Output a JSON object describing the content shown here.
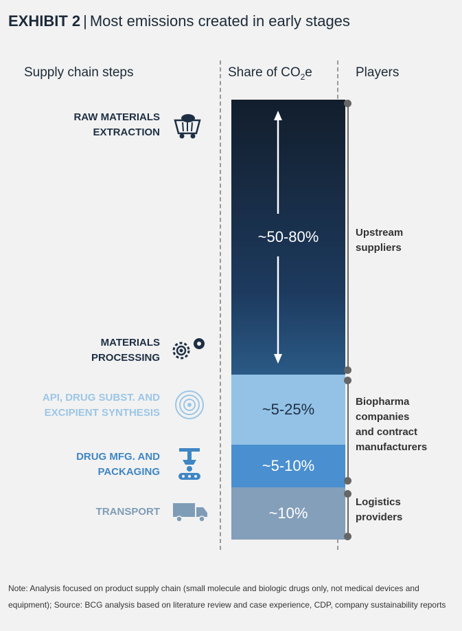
{
  "title": {
    "exhibit": "EXHIBIT 2",
    "separator": "|",
    "text": "Most emissions created in early stages"
  },
  "headers": {
    "steps": "Supply chain steps",
    "share_prefix": "Share of CO",
    "share_sub": "2",
    "share_suffix": "e",
    "players": "Players"
  },
  "steps": [
    {
      "label": "RAW MATERIALS\nEXTRACTION",
      "color": "#1e2f44",
      "icon": "mine-cart-icon"
    },
    {
      "label": "MATERIALS\nPROCESSING",
      "color": "#1e2f44",
      "icon": "gears-icon"
    },
    {
      "label": "API, DRUG SUBST. AND\nEXCIPIENT SYNTHESIS",
      "color": "#9cc6e6",
      "icon": "concentric-circles-icon"
    },
    {
      "label": "DRUG MFG. AND\nPACKAGING",
      "color": "#3f86c4",
      "icon": "robotic-conveyor-icon"
    },
    {
      "label": "TRANSPORT",
      "color": "#7f9cb6",
      "icon": "truck-icon"
    }
  ],
  "shares": [
    {
      "label": "~50-80%",
      "color": "#1b3350"
    },
    {
      "label": "~5-25%",
      "color": "#93c2e6"
    },
    {
      "label": "~5-10%",
      "color": "#4a8fcf"
    },
    {
      "label": "~10%",
      "color": "#849fba"
    }
  ],
  "players": [
    {
      "label": "Upstream\nsuppliers"
    },
    {
      "label": "Biopharma\ncompanies\nand contract\nmanufacturers"
    },
    {
      "label": "Logistics\nproviders"
    }
  ],
  "note": "Note: Analysis focused on product supply chain (small molecule and biologic drugs only, not medical devices and equipment); Source: BCG analysis based on literature review and case experience, CDP, company sustainability reports"
}
